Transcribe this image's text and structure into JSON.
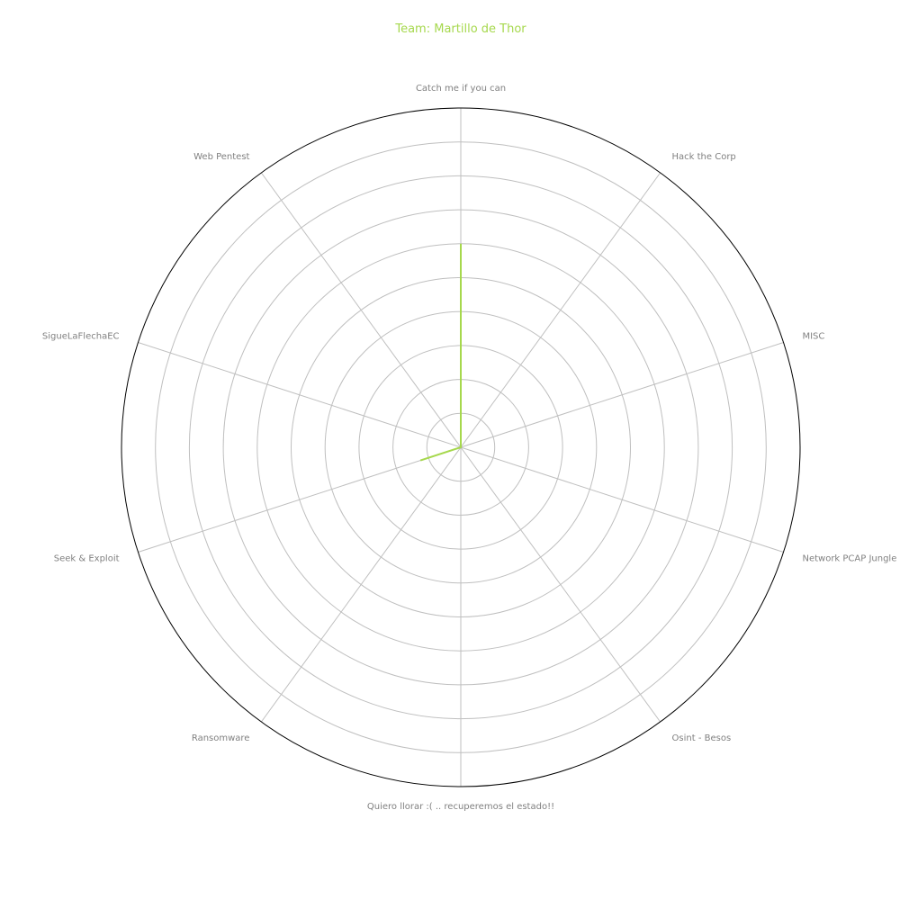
{
  "chart_data": {
    "type": "radar",
    "title": "Team: Martillo de Thor",
    "categories": [
      "Catch me if you can",
      "Hack the Corp",
      "MISC",
      "Network PCAP Jungle",
      "Osint - Besos",
      "Quiero llorar :( .. recuperemos el estado!!",
      "Ransomware",
      "Seek & Exploit",
      "SigueLaFlechaEC",
      "Web Pentest"
    ],
    "series": [
      {
        "values": [
          6,
          0,
          0,
          0,
          0,
          0,
          0,
          1.25,
          0,
          0
        ]
      }
    ],
    "rlim": [
      0,
      10
    ],
    "grid": true,
    "colors": {
      "series": "#a6d84d",
      "title": "#a6d84d",
      "grid": "#bfbfbf",
      "spine": "#000000",
      "labels": "#808080"
    }
  }
}
